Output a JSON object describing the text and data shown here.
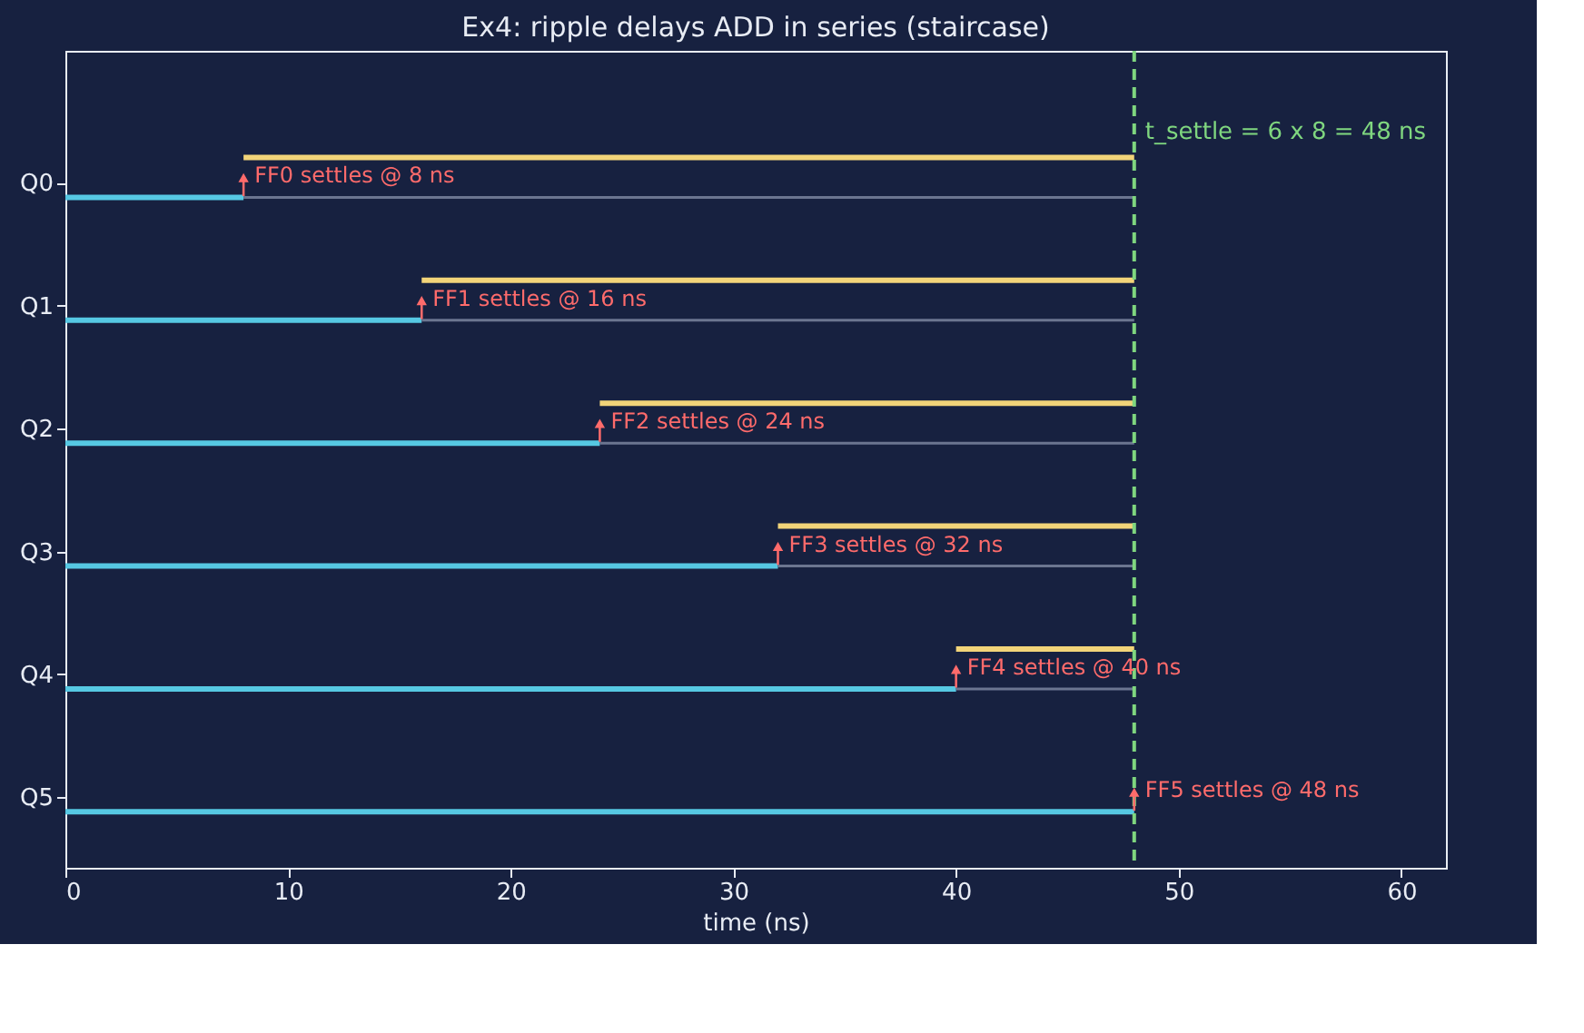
{
  "chart_data": {
    "type": "bar",
    "orientation": "horizontal",
    "title": "Ex4: ripple delays ADD in series (staircase)",
    "xlabel": "time (ns)",
    "categories": [
      "Q0",
      "Q1",
      "Q2",
      "Q3",
      "Q4",
      "Q5"
    ],
    "series": [
      {
        "color": "#56c8e3",
        "base": [
          0,
          0,
          0,
          0,
          0,
          0
        ],
        "values": [
          8,
          16,
          24,
          32,
          40,
          48
        ]
      },
      {
        "color": "#f2d479",
        "base": [
          8,
          16,
          24,
          32,
          40,
          null
        ],
        "values": [
          40,
          32,
          24,
          16,
          8,
          null
        ]
      },
      {
        "color": "#6b7590",
        "base": [
          8,
          16,
          24,
          32,
          40,
          null
        ],
        "values": [
          40,
          32,
          24,
          16,
          8,
          null
        ]
      }
    ],
    "xlim": [
      0,
      62
    ],
    "xticks": [
      0,
      10,
      20,
      30,
      40,
      50,
      60
    ],
    "grid": false,
    "ref_lines": [
      {
        "axis": "x",
        "value": 48,
        "label": "t_settle = 6 x 8 = 48 ns",
        "color": "#7fd67f",
        "line_style": "dashed"
      }
    ],
    "annotations": [
      {
        "text": "FF0 settles @ 8 ns",
        "x": 8,
        "y": "Q0"
      },
      {
        "text": "FF1 settles @ 16 ns",
        "x": 16,
        "y": "Q1"
      },
      {
        "text": "FF2 settles @ 24 ns",
        "x": 24,
        "y": "Q2"
      },
      {
        "text": "FF3 settles @ 32 ns",
        "x": 32,
        "y": "Q3"
      },
      {
        "text": "FF4 settles @ 40 ns",
        "x": 40,
        "y": "Q4"
      },
      {
        "text": "FF5 settles @ 48 ns",
        "x": 48,
        "y": "Q5"
      }
    ]
  }
}
